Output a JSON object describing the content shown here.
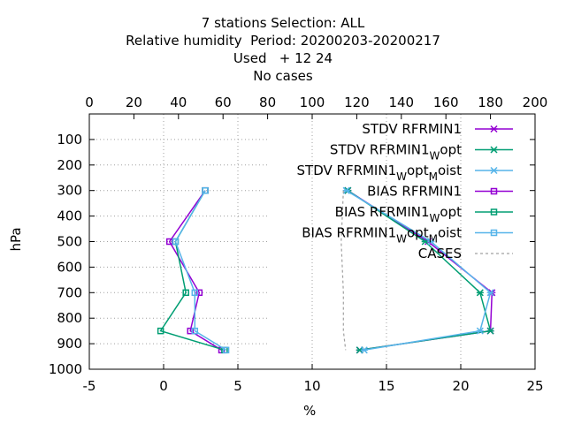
{
  "title_lines": [
    "7 stations Selection: ALL",
    "Relative humidity  Period: 20200203-20200217",
    "Used   + 12 24",
    "No cases"
  ],
  "colors": {
    "stdv_rfrmin1": "#9400d3",
    "stdv_wopt": "#009e73",
    "stdv_moist": "#56b4e9",
    "bias_rfrmin1": "#9400d3",
    "bias_wopt": "#009e73",
    "bias_moist": "#56b4e9",
    "cases": "#a0a0a0"
  },
  "chart_data": {
    "type": "line",
    "xlabel": "%",
    "ylabel": "hPa",
    "xlim": [
      -5,
      25
    ],
    "ylim": [
      1000,
      0
    ],
    "x2lim": [
      0,
      200
    ],
    "x_ticks": [
      "-5",
      "0",
      "5",
      "10",
      "15",
      "20",
      "25"
    ],
    "y_ticks": [
      "100",
      "200",
      "300",
      "400",
      "500",
      "600",
      "700",
      "800",
      "900",
      "1000"
    ],
    "x2_ticks": [
      "0",
      "20",
      "40",
      "60",
      "80",
      "100",
      "120",
      "140",
      "160",
      "180",
      "200"
    ],
    "legend_position": "top-right",
    "series": [
      {
        "key": "stdv_rfrmin1",
        "name_main": "STDV RFRMIN1",
        "name_sub1": "",
        "name_mid": "",
        "name_sub2": "",
        "name_end": "",
        "marker": "x",
        "y": [
          300,
          500,
          700,
          850,
          925
        ],
        "x": [
          12.4,
          17.8,
          22.1,
          22.0,
          13.2
        ]
      },
      {
        "key": "stdv_wopt",
        "name_main": "STDV RFRMIN1",
        "name_sub1": "W",
        "name_mid": "opt",
        "name_sub2": "",
        "name_end": "",
        "marker": "x",
        "y": [
          300,
          500,
          700,
          850,
          925
        ],
        "x": [
          12.4,
          17.6,
          21.3,
          22.0,
          13.2
        ]
      },
      {
        "key": "stdv_moist",
        "name_main": "STDV RFRMIN1",
        "name_sub1": "W",
        "name_mid": "opt",
        "name_sub2": "M",
        "name_end": "oist",
        "marker": "x",
        "y": [
          300,
          500,
          700,
          850,
          925
        ],
        "x": [
          12.3,
          18.0,
          22.0,
          21.3,
          13.5
        ]
      },
      {
        "key": "bias_rfrmin1",
        "name_main": "BIAS RFRMIN1",
        "name_sub1": "",
        "name_mid": "",
        "name_sub2": "",
        "name_end": "",
        "marker": "s",
        "y": [
          300,
          500,
          700,
          850,
          925
        ],
        "x": [
          2.8,
          0.4,
          2.4,
          1.8,
          3.9
        ]
      },
      {
        "key": "bias_wopt",
        "name_main": "BIAS RFRMIN1",
        "name_sub1": "W",
        "name_mid": "opt",
        "name_sub2": "",
        "name_end": "",
        "marker": "s",
        "y": [
          300,
          500,
          700,
          850,
          925
        ],
        "x": [
          2.8,
          0.8,
          1.5,
          -0.2,
          4.1
        ]
      },
      {
        "key": "bias_moist",
        "name_main": "BIAS RFRMIN1",
        "name_sub1": "W",
        "name_mid": "opt",
        "name_sub2": "M",
        "name_end": "oist",
        "marker": "s",
        "y": [
          300,
          500,
          700,
          850,
          925
        ],
        "x": [
          2.8,
          0.8,
          2.1,
          2.1,
          4.2
        ]
      },
      {
        "key": "cases",
        "name_main": "CASES",
        "name_sub1": "",
        "name_mid": "",
        "name_sub2": "",
        "name_end": "",
        "marker": "none",
        "dashed": true,
        "y": [
          300,
          500,
          700,
          850,
          925
        ],
        "x2": [
          114,
          113,
          114,
          114,
          115
        ]
      }
    ]
  }
}
